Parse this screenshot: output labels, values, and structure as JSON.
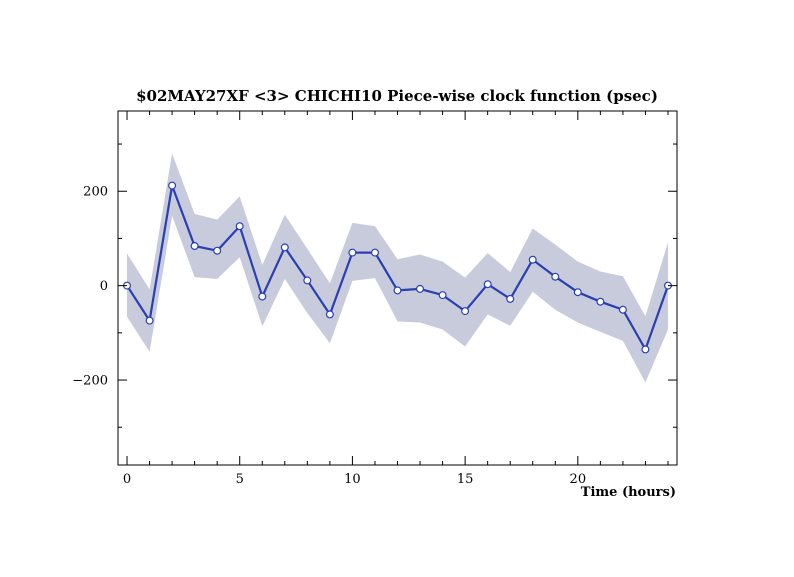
{
  "chart_data": {
    "type": "line",
    "title": "$02MAY27XF <3>  CHICHI10  Piece-wise clock function (psec)",
    "xlabel": "Time (hours)",
    "ylabel": "",
    "xlim": [
      -0.4,
      24.4
    ],
    "ylim": [
      -380,
      370
    ],
    "x_ticks": [
      0,
      5,
      10,
      15,
      20
    ],
    "x_tick_labels": [
      "0",
      "5",
      "10",
      "15",
      "20"
    ],
    "y_ticks": [
      -200,
      0,
      200
    ],
    "y_tick_labels": [
      "−200",
      "0",
      "200"
    ],
    "grid": false,
    "colors": {
      "line": "#2a3fb0",
      "band": "#c8cbdc",
      "marker_fill": "#ffffff"
    },
    "x": [
      0,
      1,
      2,
      3,
      4,
      5,
      6,
      7,
      8,
      9,
      10,
      11,
      12,
      13,
      14,
      15,
      16,
      17,
      18,
      19,
      20,
      21,
      22,
      23,
      24
    ],
    "series": [
      {
        "values": [
          0,
          -74,
          212,
          84,
          74,
          126,
          -23,
          81,
          11,
          -61,
          70,
          70,
          -10,
          -7,
          -20,
          -54,
          3,
          -28,
          55,
          19,
          -14,
          -34,
          -51,
          -135,
          0
        ],
        "upper": [
          68,
          -8,
          280,
          152,
          140,
          189,
          44,
          150,
          78,
          5,
          133,
          126,
          56,
          66,
          51,
          17,
          69,
          29,
          121,
          87,
          51,
          30,
          20,
          -65,
          92
        ],
        "lower": [
          -66,
          -140,
          148,
          18,
          14,
          60,
          -86,
          14,
          -58,
          -122,
          10,
          16,
          -76,
          -78,
          -93,
          -129,
          -61,
          -85,
          -13,
          -51,
          -78,
          -98,
          -117,
          -205,
          -93
        ]
      }
    ]
  }
}
